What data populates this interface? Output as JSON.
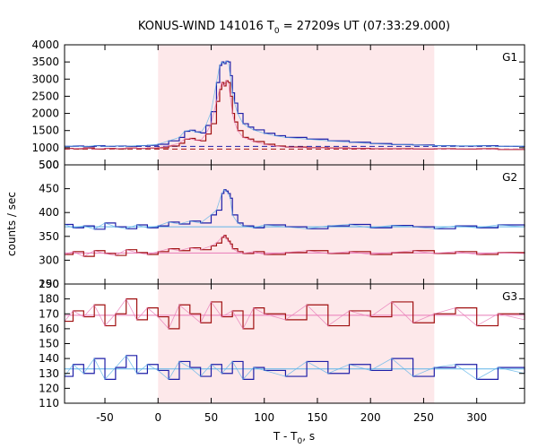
{
  "chart_data": {
    "type": "line",
    "title": {
      "prefix": "KONUS-WIND 141016 T",
      "sub": "0",
      "suffix": " = 27209s UT (07:33:29.000)"
    },
    "xlabel": {
      "prefix": "T - T",
      "sub": "0",
      "suffix": ", s"
    },
    "ylabel": "counts / sec",
    "xlim": [
      -88,
      345
    ],
    "xticks": [
      -50,
      0,
      50,
      100,
      150,
      200,
      250,
      300
    ],
    "xtick_labels": [
      "-50",
      "0",
      "50",
      "100",
      "150",
      "200",
      "250",
      "300"
    ],
    "highlight_interval": [
      0,
      260
    ],
    "panels": [
      {
        "label": "G1",
        "ylim": [
          500,
          4000
        ],
        "yticks": [
          500,
          1000,
          1500,
          2000,
          2500,
          3000,
          3500,
          4000
        ],
        "ytick_labels": [
          "500",
          "1000",
          "1500",
          "2000",
          "2500",
          "3000",
          "3500",
          "4000"
        ],
        "series": [
          {
            "color": "#1f1fa8",
            "fit_color": "#5fb4e8",
            "background_level": 1040,
            "x": [
              -88,
              -80,
              -70,
              -60,
              -50,
              -40,
              -30,
              -20,
              -10,
              0,
              10,
              20,
              25,
              30,
              35,
              40,
              45,
              50,
              55,
              58,
              60,
              62,
              64,
              66,
              68,
              70,
              72,
              75,
              80,
              85,
              90,
              100,
              110,
              120,
              140,
              160,
              180,
              200,
              220,
              240,
              260,
              280,
              300,
              320,
              345
            ],
            "y": [
              1040,
              1050,
              1030,
              1060,
              1040,
              1050,
              1040,
              1060,
              1070,
              1100,
              1200,
              1300,
              1480,
              1510,
              1460,
              1430,
              1650,
              2050,
              2900,
              3400,
              3500,
              3450,
              3520,
              3500,
              3100,
              2600,
              2300,
              2000,
              1700,
              1600,
              1520,
              1420,
              1350,
              1300,
              1250,
              1200,
              1160,
              1120,
              1090,
              1080,
              1060,
              1050,
              1060,
              1040,
              1050
            ]
          },
          {
            "color": "#a01010",
            "fit_color": "#e87ab8",
            "background_level": 960,
            "x": [
              -88,
              -80,
              -70,
              -60,
              -50,
              -40,
              -30,
              -20,
              -10,
              0,
              10,
              20,
              25,
              30,
              35,
              40,
              45,
              50,
              55,
              58,
              60,
              62,
              64,
              66,
              68,
              70,
              72,
              75,
              80,
              85,
              90,
              100,
              110,
              120,
              140,
              160,
              180,
              200,
              220,
              240,
              260,
              280,
              300,
              320,
              345
            ],
            "y": [
              980,
              970,
              990,
              960,
              980,
              970,
              990,
              980,
              990,
              1000,
              1050,
              1130,
              1250,
              1270,
              1220,
              1200,
              1400,
              1700,
              2350,
              2700,
              2900,
              2800,
              2950,
              2900,
              2500,
              2000,
              1750,
              1500,
              1300,
              1250,
              1180,
              1100,
              1050,
              1020,
              1000,
              990,
              980,
              970,
              970,
              960,
              970,
              960,
              970,
              950,
              960
            ]
          }
        ]
      },
      {
        "label": "G2",
        "ylim": [
          250,
          500
        ],
        "yticks": [
          250,
          300,
          350,
          400,
          450,
          500
        ],
        "ytick_labels": [
          "250",
          "300",
          "350",
          "400",
          "450",
          "500"
        ],
        "series": [
          {
            "color": "#1f1fa8",
            "fit_color": "#5fb4e8",
            "background_level": 370,
            "x": [
              -88,
              -80,
              -70,
              -60,
              -50,
              -40,
              -30,
              -20,
              -10,
              0,
              10,
              20,
              30,
              40,
              50,
              55,
              60,
              62,
              64,
              66,
              68,
              70,
              75,
              80,
              90,
              100,
              120,
              140,
              160,
              180,
              200,
              220,
              240,
              260,
              280,
              300,
              320,
              345
            ],
            "y": [
              375,
              368,
              372,
              365,
              378,
              370,
              366,
              374,
              368,
              372,
              380,
              376,
              382,
              378,
              395,
              405,
              440,
              448,
              445,
              440,
              430,
              395,
              378,
              372,
              368,
              374,
              370,
              366,
              372,
              375,
              368,
              373,
              370,
              366,
              372,
              368,
              374,
              370
            ]
          },
          {
            "color": "#a01010",
            "fit_color": "#e87ab8",
            "background_level": 315,
            "x": [
              -88,
              -80,
              -70,
              -60,
              -50,
              -40,
              -30,
              -20,
              -10,
              0,
              10,
              20,
              30,
              40,
              50,
              55,
              60,
              62,
              64,
              66,
              68,
              70,
              75,
              80,
              90,
              100,
              120,
              140,
              160,
              180,
              200,
              220,
              240,
              260,
              280,
              300,
              320,
              345
            ],
            "y": [
              312,
              318,
              308,
              320,
              314,
              310,
              322,
              316,
              312,
              318,
              324,
              320,
              326,
              322,
              330,
              336,
              348,
              352,
              346,
              340,
              334,
              324,
              318,
              314,
              318,
              312,
              316,
              320,
              314,
              318,
              312,
              316,
              320,
              314,
              318,
              312,
              316,
              314
            ]
          }
        ]
      },
      {
        "label": "G3",
        "ylim": [
          110,
          190
        ],
        "yticks": [
          110,
          120,
          130,
          140,
          150,
          160,
          170,
          180,
          190
        ],
        "ytick_labels": [
          "110",
          "120",
          "130",
          "140",
          "150",
          "160",
          "170",
          "180",
          "190"
        ],
        "series": [
          {
            "color": "#a01010",
            "fit_color": "#e87ab8",
            "background_level": 169,
            "x": [
              -88,
              -80,
              -70,
              -60,
              -50,
              -40,
              -30,
              -20,
              -10,
              0,
              10,
              20,
              30,
              40,
              50,
              60,
              70,
              80,
              90,
              100,
              120,
              140,
              160,
              180,
              200,
              220,
              240,
              260,
              280,
              300,
              320,
              345
            ],
            "y": [
              165,
              172,
              168,
              176,
              162,
              170,
              180,
              166,
              174,
              168,
              160,
              176,
              170,
              164,
              178,
              168,
              172,
              160,
              174,
              170,
              166,
              176,
              162,
              172,
              168,
              178,
              164,
              170,
              174,
              162,
              170,
              166
            ]
          },
          {
            "color": "#1f1fa8",
            "fit_color": "#5fb4e8",
            "background_level": 133,
            "x": [
              -88,
              -80,
              -70,
              -60,
              -50,
              -40,
              -30,
              -20,
              -10,
              0,
              10,
              20,
              30,
              40,
              50,
              60,
              70,
              80,
              90,
              100,
              120,
              140,
              160,
              180,
              200,
              220,
              240,
              260,
              280,
              300,
              320,
              345
            ],
            "y": [
              128,
              136,
              130,
              140,
              126,
              134,
              142,
              130,
              136,
              132,
              126,
              138,
              134,
              128,
              136,
              130,
              138,
              126,
              134,
              132,
              128,
              138,
              130,
              136,
              132,
              140,
              128,
              134,
              136,
              126,
              134,
              130
            ]
          }
        ]
      }
    ]
  }
}
